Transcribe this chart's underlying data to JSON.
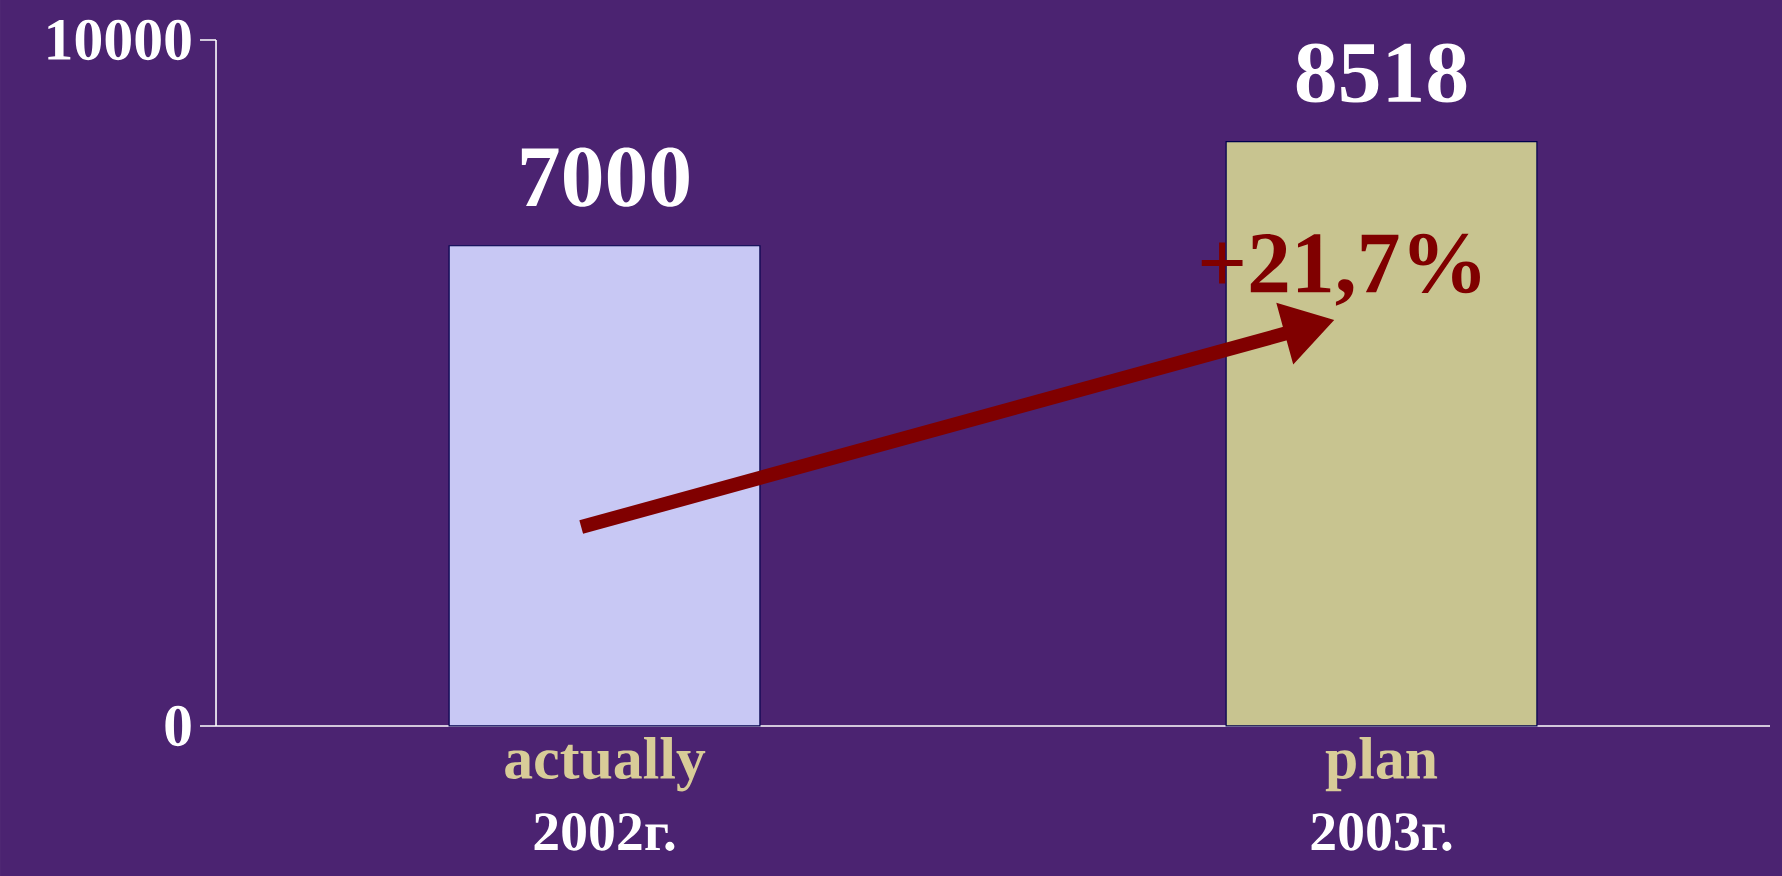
{
  "chart_data": {
    "type": "bar",
    "categories": [
      "actually",
      "plan"
    ],
    "values": [
      7000,
      8518
    ],
    "colors": [
      "#c8c8f4",
      "#c8c490"
    ],
    "ylim": [
      0,
      10000
    ],
    "yticks": [
      0,
      10000
    ],
    "data_labels": true,
    "annotations": [
      "2002г.",
      "2003г.",
      "+21,7%"
    ]
  }
}
